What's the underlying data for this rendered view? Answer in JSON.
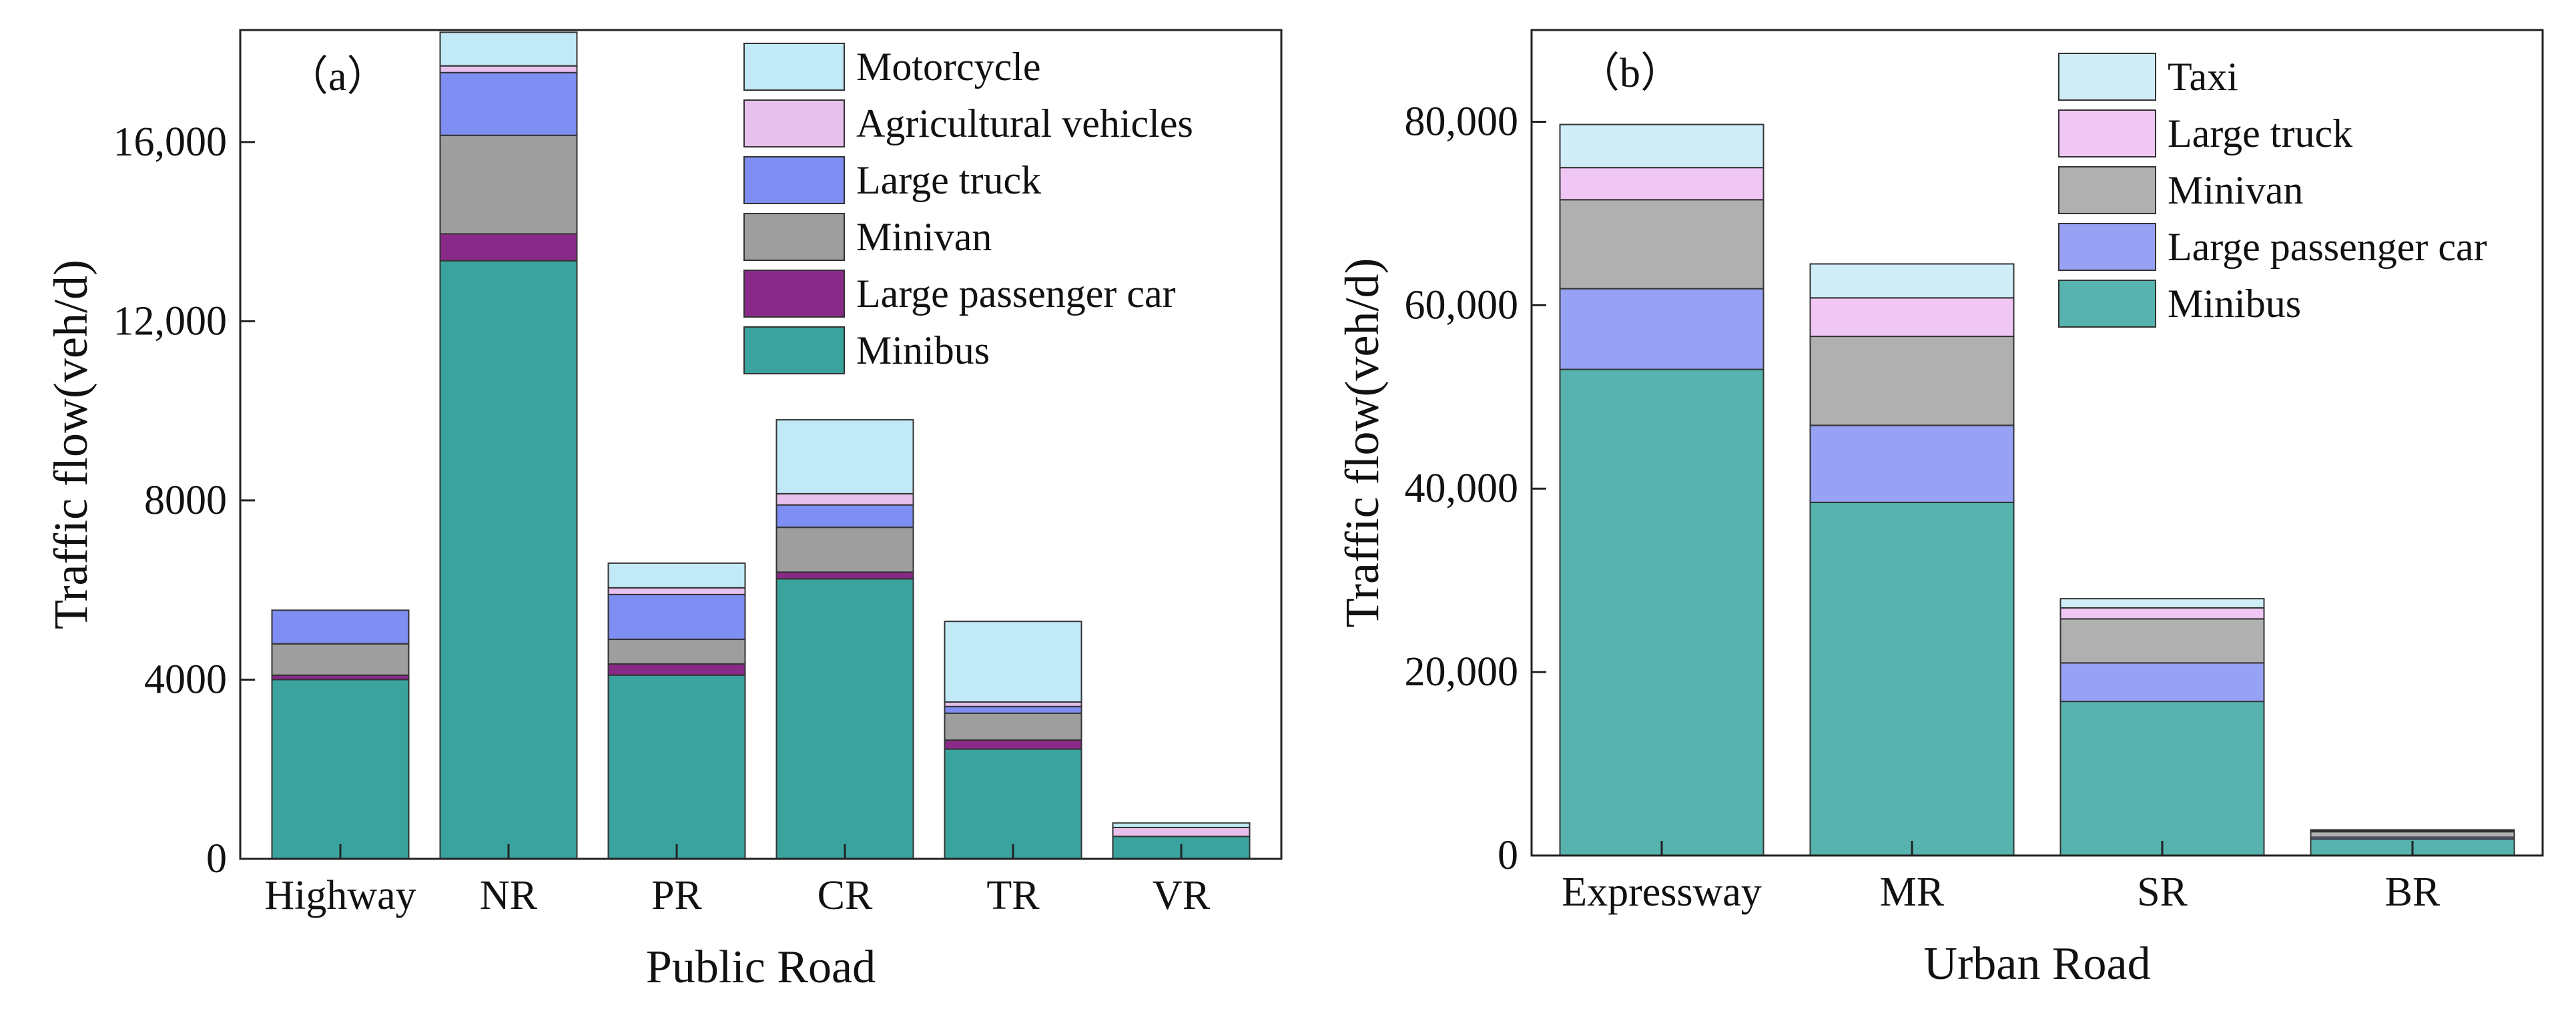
{
  "chart_data": [
    {
      "type": "bar",
      "stacked": true,
      "panel_label": "（a）",
      "title": "",
      "xlabel": "Public Road",
      "ylabel": "Traffic flow(veh/d)",
      "ylim": [
        0,
        18500
      ],
      "yticks": [
        0,
        4000,
        8000,
        12000,
        16000
      ],
      "ytick_labels": [
        "0",
        "4000",
        "8000",
        "12,000",
        "16,000"
      ],
      "categories": [
        "Highway",
        "NR",
        "PR",
        "CR",
        "TR",
        "VR"
      ],
      "legend_position": "top-right",
      "series": [
        {
          "name": "Minibus",
          "color": "#3aa39d",
          "values": [
            4000,
            13350,
            4100,
            6250,
            2450,
            500
          ]
        },
        {
          "name": "Large passenger car",
          "color": "#8a2a88",
          "values": [
            100,
            600,
            250,
            150,
            200,
            0
          ]
        },
        {
          "name": "Minivan",
          "color": "#9e9e9e",
          "values": [
            700,
            2200,
            550,
            1000,
            600,
            0
          ]
        },
        {
          "name": "Large truck",
          "color": "#7f8ef2",
          "values": [
            750,
            1400,
            1000,
            500,
            150,
            0
          ]
        },
        {
          "name": "Agricultural vehicles",
          "color": "#e8c0ee",
          "values": [
            0,
            150,
            150,
            250,
            100,
            200
          ]
        },
        {
          "name": "Motorcycle",
          "color": "#c2e9f6",
          "values": [
            0,
            750,
            550,
            1650,
            1800,
            100
          ]
        }
      ]
    },
    {
      "type": "bar",
      "stacked": true,
      "panel_label": "（b）",
      "title": "",
      "xlabel": "Urban Road",
      "ylabel": "Traffic flow(veh/d)",
      "ylim": [
        0,
        90000
      ],
      "yticks": [
        0,
        20000,
        40000,
        60000,
        80000
      ],
      "ytick_labels": [
        "0",
        "20,000",
        "40,000",
        "60,000",
        "80,000"
      ],
      "categories": [
        "Expressway",
        "MR",
        "SR",
        "BR"
      ],
      "legend_position": "top-right",
      "series": [
        {
          "name": "Minibus",
          "color": "#57b3ae",
          "values": [
            53000,
            38500,
            16800,
            1800
          ]
        },
        {
          "name": "Large passenger car",
          "color": "#97a2f5",
          "values": [
            8800,
            8400,
            4200,
            200
          ]
        },
        {
          "name": "Minivan",
          "color": "#b0b0b0",
          "values": [
            9700,
            9700,
            4800,
            600
          ]
        },
        {
          "name": "Large truck",
          "color": "#f0c6f4",
          "values": [
            3500,
            4200,
            1200,
            100
          ]
        },
        {
          "name": "Taxi",
          "color": "#d0eef8",
          "values": [
            4700,
            3700,
            1000,
            100
          ]
        }
      ]
    }
  ]
}
